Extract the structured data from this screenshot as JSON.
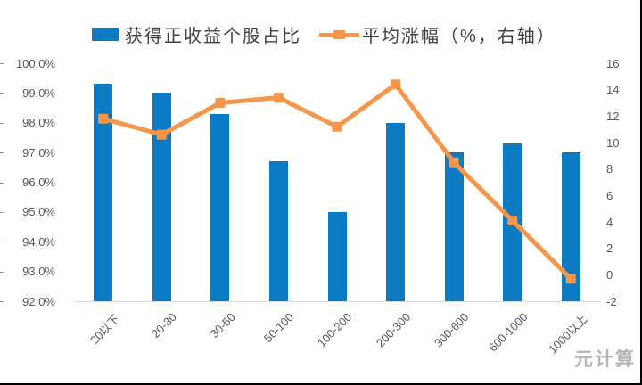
{
  "watermark": "元计算",
  "colors": {
    "bar": "#0d7ac4",
    "line": "#f5964b",
    "axis_text": "#595959",
    "legend_text": "#404040",
    "axis_line": "#d9d9d9",
    "watermark": "#b5b5b5",
    "border": "#000000"
  },
  "chart_data": {
    "type": "bar+line combo",
    "title": "",
    "grid": false,
    "legend_position": "top",
    "categories": [
      "20以下",
      "20-30",
      "30-50",
      "50-100",
      "100-200",
      "200-300",
      "300-600",
      "600-1000",
      "1000以上"
    ],
    "series": [
      {
        "name": "获得正收益个股占比",
        "type": "bar",
        "axis": "left",
        "color": "#0d7ac4",
        "values": [
          99.3,
          99.0,
          98.3,
          96.7,
          95.0,
          98.0,
          97.0,
          97.3,
          97.0
        ]
      },
      {
        "name": "平均涨幅（%，右轴）",
        "type": "line",
        "axis": "right",
        "color": "#f5964b",
        "values": [
          11.8,
          10.6,
          13.0,
          13.4,
          11.2,
          14.4,
          8.5,
          4.1,
          -0.3
        ]
      }
    ],
    "left_axis": {
      "min": 92,
      "max": 100,
      "step": 1,
      "ticks": [
        "100.0%",
        "99.0%",
        "98.0%",
        "97.0%",
        "96.0%",
        "95.0%",
        "94.0%",
        "93.0%",
        "92.0%"
      ]
    },
    "right_axis": {
      "min": -2,
      "max": 16,
      "step": 2,
      "ticks": [
        "16",
        "14",
        "12",
        "10",
        "8",
        "6",
        "4",
        "2",
        "0",
        "-2"
      ]
    }
  }
}
